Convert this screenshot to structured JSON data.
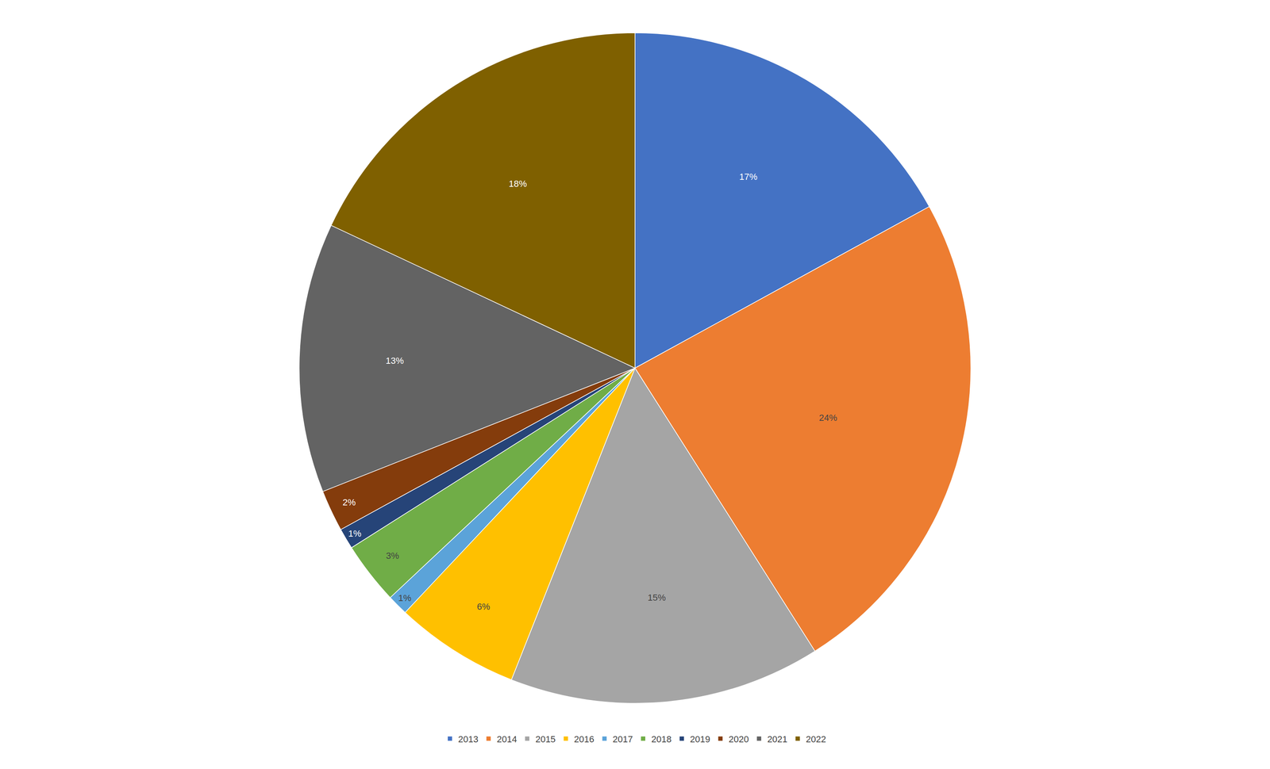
{
  "chart_data": {
    "type": "pie",
    "categories": [
      "2013",
      "2014",
      "2015",
      "2016",
      "2017",
      "2018",
      "2019",
      "2020",
      "2021",
      "2022"
    ],
    "values": [
      17,
      24,
      15,
      6,
      1,
      3,
      1,
      2,
      13,
      18
    ],
    "value_labels": [
      "17%",
      "24%",
      "15%",
      "6%",
      "1%",
      "3%",
      "1%",
      "2%",
      "13%",
      "18%"
    ],
    "colors": [
      "#4472C4",
      "#ED7D31",
      "#A5A5A5",
      "#FFC000",
      "#5BA3D9",
      "#70AD47",
      "#264478",
      "#843C0C",
      "#636363",
      "#7F6000"
    ],
    "data_labels": true,
    "legend": "bottom"
  }
}
